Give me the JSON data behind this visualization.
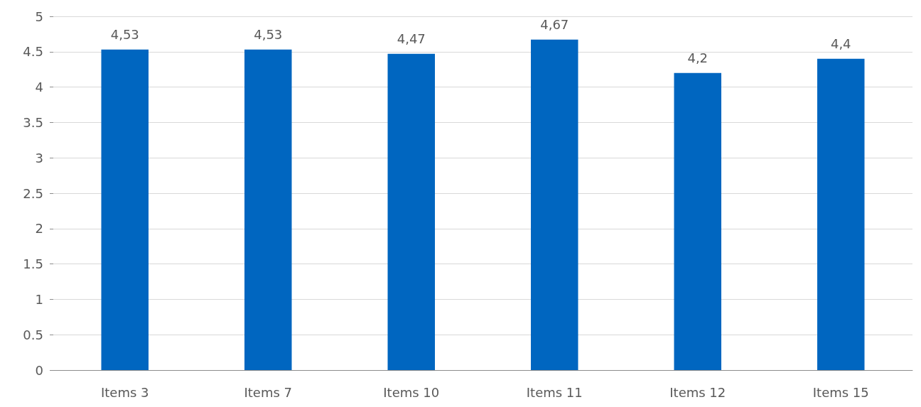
{
  "chart_data": {
    "type": "bar",
    "categories": [
      "Items 3",
      "Items 7",
      "Items 10",
      "Items 11",
      "Items 12",
      "Items 15"
    ],
    "values": [
      4.53,
      4.53,
      4.47,
      4.67,
      4.2,
      4.4
    ],
    "value_labels": [
      "4,53",
      "4,53",
      "4,47",
      "4,67",
      "4,2",
      "4,4"
    ],
    "color": "#0066c0",
    "ylim": [
      0,
      5
    ],
    "yticks": [
      0,
      0.5,
      1,
      1.5,
      2,
      2.5,
      3,
      3.5,
      4,
      4.5,
      5
    ],
    "grid": "y"
  }
}
